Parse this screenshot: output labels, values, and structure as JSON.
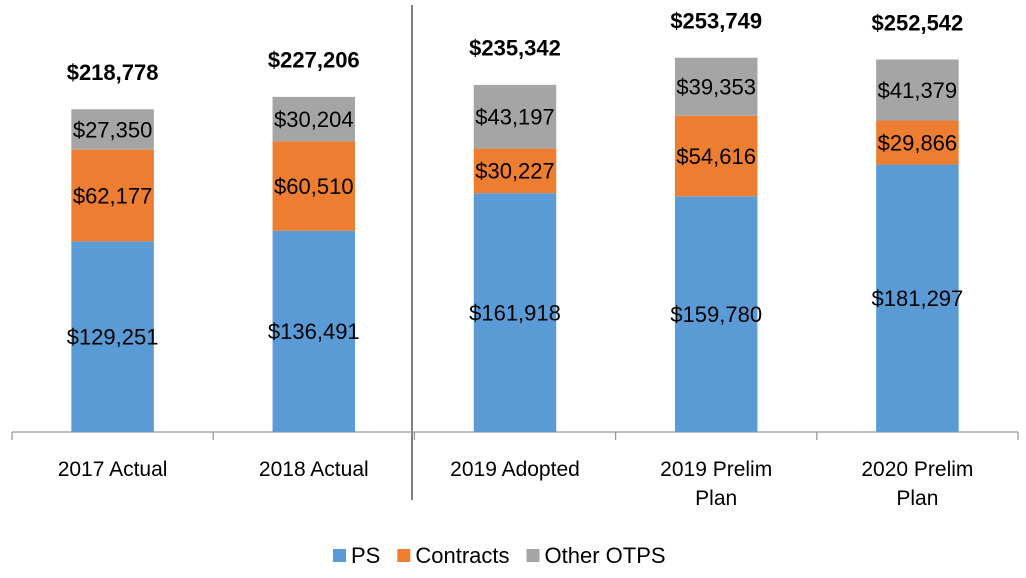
{
  "chart_data": {
    "type": "stacked_bar",
    "categories": [
      "2017 Actual",
      "2018 Actual",
      "2019 Adopted",
      "2019 Prelim Plan",
      "2020 Prelim Plan"
    ],
    "series": [
      {
        "name": "PS",
        "color": "#5b9bd5",
        "values": [
          129251,
          136491,
          161918,
          159780,
          181297
        ],
        "value_labels": [
          "$129,251",
          "$136,491",
          "$161,918",
          "$159,780",
          "$181,297"
        ]
      },
      {
        "name": "Contracts",
        "color": "#ed7d31",
        "values": [
          62177,
          60510,
          30227,
          54616,
          29866
        ],
        "value_labels": [
          "$62,177",
          "$60,510",
          "$30,227",
          "$54,616",
          "$29,866"
        ]
      },
      {
        "name": "Other OTPS",
        "color": "#a5a5a5",
        "values": [
          27350,
          30204,
          43197,
          39353,
          41379
        ],
        "value_labels": [
          "$27,350",
          "$30,204",
          "$43,197",
          "$39,353",
          "$41,379"
        ]
      }
    ],
    "totals": [
      218778,
      227206,
      235342,
      253749,
      252542
    ],
    "total_labels": [
      "$218,778",
      "$227,206",
      "$235,342",
      "$253,749",
      "$252,542"
    ],
    "ylim": [
      0,
      280000
    ],
    "legend": "bottom"
  }
}
